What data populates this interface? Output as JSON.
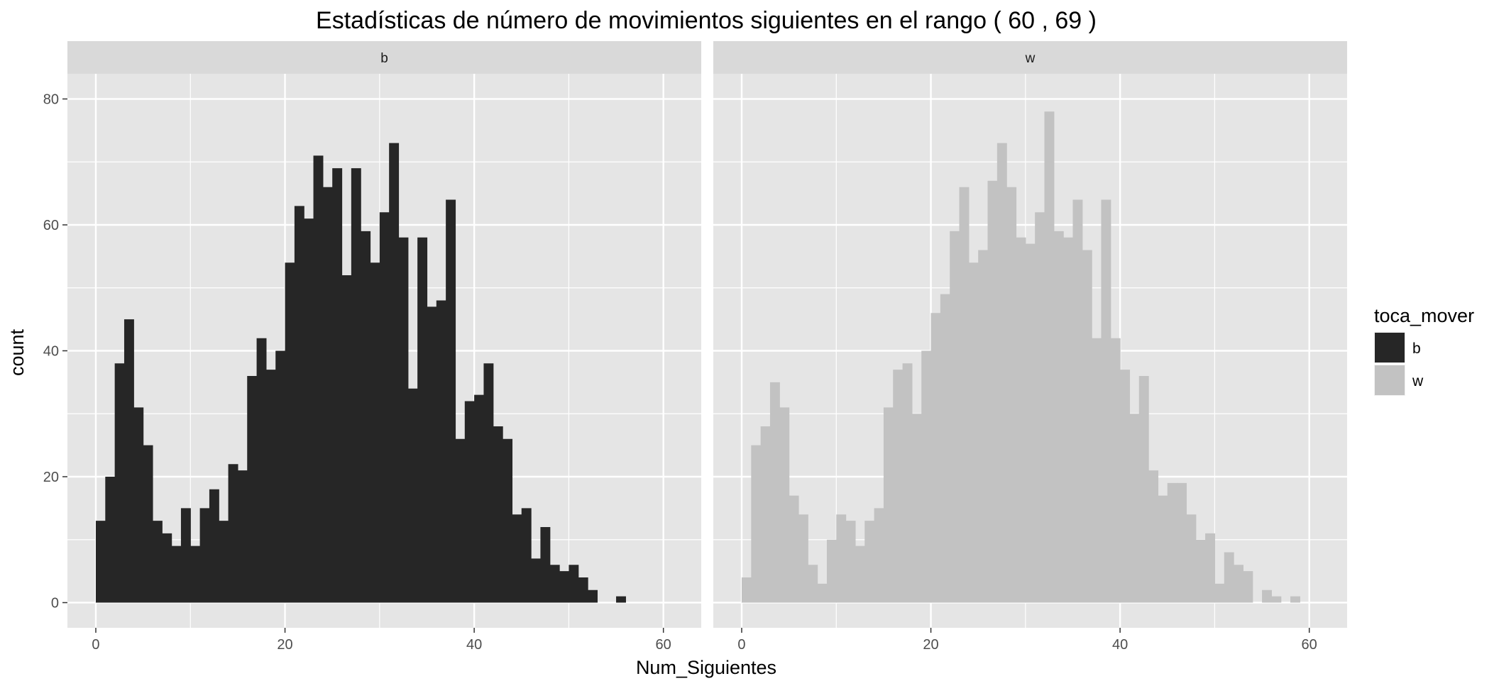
{
  "chart_data": {
    "type": "bar",
    "title": "Estadísticas de número de movimientos siguientes en el rango ( 60 , 69 )",
    "xlabel": "Num_Siguientes",
    "ylabel": "count",
    "xlim": [
      -3,
      64
    ],
    "ylim": [
      -4,
      84
    ],
    "x_ticks": [
      0,
      20,
      40,
      60
    ],
    "y_ticks": [
      0,
      20,
      40,
      60,
      80
    ],
    "x_tick_labels": [
      "0",
      "20",
      "40",
      "60"
    ],
    "y_tick_labels": [
      "0",
      "20",
      "40",
      "60",
      "80"
    ],
    "bin_width": 1,
    "x": [
      0,
      1,
      2,
      3,
      4,
      5,
      6,
      7,
      8,
      9,
      10,
      11,
      12,
      13,
      14,
      15,
      16,
      17,
      18,
      19,
      20,
      21,
      22,
      23,
      24,
      25,
      26,
      27,
      28,
      29,
      30,
      31,
      32,
      33,
      34,
      35,
      36,
      37,
      38,
      39,
      40,
      41,
      42,
      43,
      44,
      45,
      46,
      47,
      48,
      49,
      50,
      51,
      52,
      53,
      54,
      55,
      56,
      57,
      58,
      59
    ],
    "facets": [
      {
        "label": "b",
        "color": "#262626",
        "values": [
          13,
          20,
          38,
          45,
          31,
          25,
          13,
          11,
          9,
          15,
          9,
          15,
          18,
          13,
          22,
          21,
          36,
          42,
          37,
          40,
          54,
          63,
          61,
          71,
          66,
          69,
          52,
          69,
          59,
          54,
          62,
          73,
          58,
          34,
          58,
          47,
          48,
          64,
          26,
          32,
          33,
          38,
          28,
          26,
          14,
          15,
          7,
          12,
          6,
          5,
          6,
          4,
          2,
          0,
          0,
          1,
          0,
          0,
          0,
          0
        ]
      },
      {
        "label": "w",
        "color": "#c2c2c2",
        "values": [
          4,
          25,
          28,
          35,
          31,
          17,
          14,
          6,
          3,
          10,
          14,
          13,
          9,
          13,
          15,
          31,
          37,
          38,
          30,
          40,
          46,
          49,
          59,
          66,
          54,
          56,
          67,
          73,
          66,
          58,
          57,
          62,
          78,
          59,
          58,
          64,
          56,
          42,
          64,
          42,
          37,
          30,
          36,
          21,
          17,
          19,
          19,
          14,
          10,
          11,
          3,
          8,
          6,
          5,
          0,
          2,
          1,
          0,
          1,
          0
        ]
      }
    ],
    "legend": {
      "title": "toca_mover",
      "position": "right",
      "entries": [
        {
          "label": "b",
          "color": "#262626"
        },
        {
          "label": "w",
          "color": "#c2c2c2"
        }
      ]
    },
    "grid": true,
    "panel_background": "#e5e5e5",
    "strip_background": "#d9d9d9",
    "grid_color": "#ffffff"
  }
}
